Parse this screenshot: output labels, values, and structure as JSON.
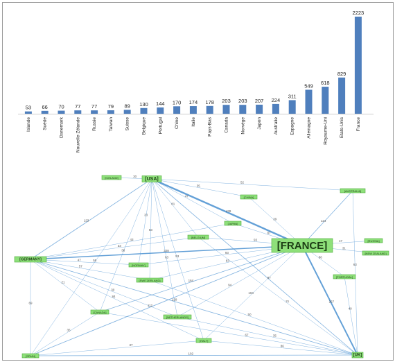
{
  "colors": {
    "bar": "#4f7fbd",
    "edge": "#5b9bd5",
    "node_fill": "#8ee07a",
    "node_stroke": "#4faa3d"
  },
  "chart_data": [
    {
      "type": "bar",
      "categories": [
        "Islande",
        "Suède",
        "Danemark",
        "Nouvelle-Zélande",
        "Russie",
        "Taïwan",
        "Suisse",
        "Belgique",
        "Portugal",
        "Chine",
        "Italie",
        "Pays-Bas",
        "Canada",
        "Norvège",
        "Japon",
        "Australie",
        "Espagne",
        "Allemagne",
        "Royaume-Uni",
        "Etats-Unis",
        "France"
      ],
      "values": [
        53,
        66,
        70,
        77,
        77,
        79,
        89,
        130,
        144,
        170,
        174,
        178,
        203,
        203,
        207,
        224,
        311,
        549,
        618,
        829,
        2223
      ],
      "ylim": [
        0,
        2223
      ],
      "grid": false
    },
    {
      "type": "network",
      "nodes": [
        {
          "id": "usa",
          "label": "[USA]"
        },
        {
          "id": "france",
          "label": "[FRANCE]"
        },
        {
          "id": "germany",
          "label": "[GERMANY]"
        },
        {
          "id": "uk",
          "label": "[UK]"
        },
        {
          "id": "spain",
          "label": "[SPAIN]"
        },
        {
          "id": "iceland",
          "label": "[ICELAND]"
        },
        {
          "id": "china",
          "label": "[CHINA]"
        },
        {
          "id": "australia",
          "label": "[AUSTRALIA]"
        },
        {
          "id": "japan",
          "label": "[JAPAN]"
        },
        {
          "id": "belgium",
          "label": "[BELGIUM]"
        },
        {
          "id": "russia",
          "label": "[RUSSIA]"
        },
        {
          "id": "newzealand",
          "label": "[NEW ZEALAND]"
        },
        {
          "id": "norway",
          "label": "[NORWAY]"
        },
        {
          "id": "switzerland",
          "label": "[SWITZERLAND]"
        },
        {
          "id": "portugal",
          "label": "[PORTUGAL]"
        },
        {
          "id": "canada",
          "label": "[CANADA]"
        },
        {
          "id": "netherlands",
          "label": "[NETHERLANDS]"
        },
        {
          "id": "italy",
          "label": "[ITALY]"
        }
      ],
      "edges": [
        {
          "source": "usa",
          "target": "iceland",
          "weight": "30"
        },
        {
          "source": "usa",
          "target": "australia",
          "weight": "52"
        },
        {
          "source": "usa",
          "target": "china",
          "weight": "35"
        },
        {
          "source": "usa",
          "target": "france",
          "weight": "439"
        },
        {
          "source": "usa",
          "target": "germany",
          "weight": "123"
        },
        {
          "source": "usa",
          "target": "uk",
          "weight": "87"
        },
        {
          "source": "usa",
          "target": "japan",
          "weight": "47"
        },
        {
          "source": "usa",
          "target": "belgium",
          "weight": "81"
        },
        {
          "source": "usa",
          "target": "italy",
          "weight": "53"
        },
        {
          "source": "usa",
          "target": "switzerland",
          "weight": "83"
        },
        {
          "source": "usa",
          "target": "canada",
          "weight": "36"
        },
        {
          "source": "usa",
          "target": "netherlands",
          "weight": "63"
        },
        {
          "source": "usa",
          "target": "norway",
          "weight": "33"
        },
        {
          "source": "usa",
          "target": "spain",
          "weight": "55"
        },
        {
          "source": "france",
          "target": "germany",
          "weight": "228"
        },
        {
          "source": "france",
          "target": "uk",
          "weight": "267"
        },
        {
          "source": "france",
          "target": "spain",
          "weight": "112"
        },
        {
          "source": "france",
          "target": "australia",
          "weight": "124"
        },
        {
          "source": "france",
          "target": "belgium",
          "weight": "93"
        },
        {
          "source": "france",
          "target": "japan",
          "weight": "87"
        },
        {
          "source": "france",
          "target": "china",
          "weight": "39"
        },
        {
          "source": "france",
          "target": "russia",
          "weight": "47"
        },
        {
          "source": "france",
          "target": "newzealand",
          "weight": "31"
        },
        {
          "source": "france",
          "target": "portugal",
          "weight": "86"
        },
        {
          "source": "france",
          "target": "norway",
          "weight": "93"
        },
        {
          "source": "france",
          "target": "switzerland",
          "weight": "83"
        },
        {
          "source": "france",
          "target": "italy",
          "weight": "104"
        },
        {
          "source": "france",
          "target": "canada",
          "weight": "164"
        },
        {
          "source": "france",
          "target": "netherlands",
          "weight": "94"
        },
        {
          "source": "germany",
          "target": "uk",
          "weight": "129"
        },
        {
          "source": "germany",
          "target": "spain",
          "weight": "69"
        },
        {
          "source": "germany",
          "target": "japan",
          "weight": "43"
        },
        {
          "source": "germany",
          "target": "belgium",
          "weight": "33"
        },
        {
          "source": "germany",
          "target": "netherlands",
          "weight": "30"
        },
        {
          "source": "germany",
          "target": "switzerland",
          "weight": "57"
        },
        {
          "source": "germany",
          "target": "norway",
          "weight": "47"
        },
        {
          "source": "germany",
          "target": "italy",
          "weight": "84"
        },
        {
          "source": "uk",
          "target": "spain",
          "weight": "102"
        },
        {
          "source": "uk",
          "target": "australia",
          "weight": "63"
        },
        {
          "source": "uk",
          "target": "portugal",
          "weight": "40"
        },
        {
          "source": "uk",
          "target": "canada",
          "weight": "67"
        },
        {
          "source": "uk",
          "target": "netherlands",
          "weight": "35"
        },
        {
          "source": "uk",
          "target": "italy",
          "weight": "86"
        },
        {
          "source": "uk",
          "target": "switzerland",
          "weight": "50"
        },
        {
          "source": "spain",
          "target": "canada",
          "weight": "35"
        },
        {
          "source": "spain",
          "target": "italy",
          "weight": "37"
        },
        {
          "source": "uk",
          "target": "belgium",
          "weight": "21"
        },
        {
          "source": "germany",
          "target": "canada",
          "weight": "21"
        }
      ]
    }
  ]
}
